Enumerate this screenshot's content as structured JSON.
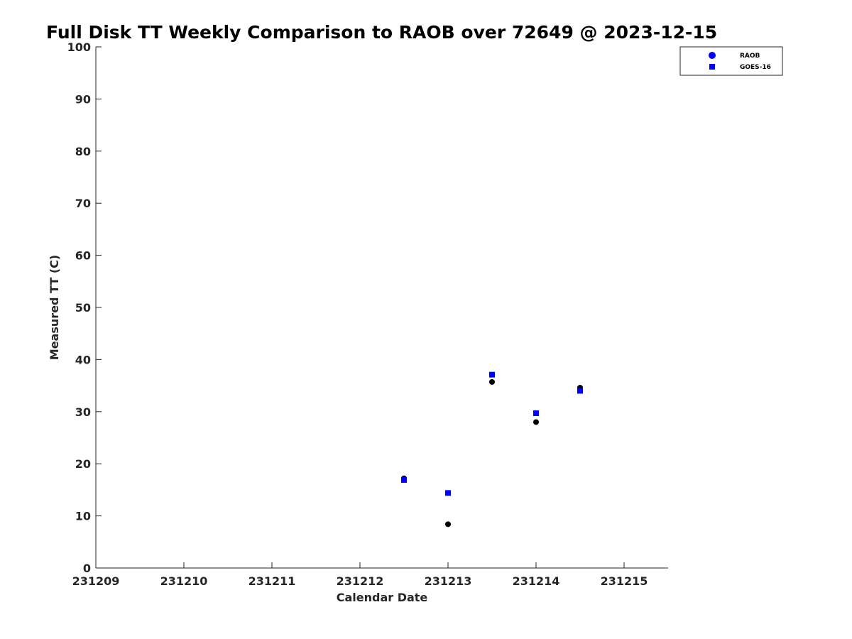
{
  "chart_data": {
    "type": "scatter",
    "title": "Full Disk TT Weekly Comparison to RAOB over 72649 @ 2023-12-15",
    "xlabel": "Calendar Date",
    "ylabel": "Measured TT (C)",
    "xlim": [
      231209,
      231215.5
    ],
    "ylim": [
      0,
      100
    ],
    "xticks": [
      "231209",
      "231210",
      "231211",
      "231212",
      "231213",
      "231214",
      "231215"
    ],
    "yticks": [
      "0",
      "10",
      "20",
      "30",
      "40",
      "50",
      "60",
      "70",
      "80",
      "90",
      "100"
    ],
    "grid": false,
    "legend_position": "top-right (outside plot)",
    "series": [
      {
        "name": "RAOB",
        "marker": "circle",
        "color": "#000000",
        "legend_color": "#0000ff",
        "x": [
          231212.5,
          231213,
          231213.5,
          231214,
          231214.5
        ],
        "y": [
          17.2,
          8.4,
          35.7,
          28.0,
          34.6
        ]
      },
      {
        "name": "GOES-16",
        "marker": "square",
        "color": "#0000ff",
        "x": [
          231212.5,
          231213,
          231213.5,
          231214,
          231214.5
        ],
        "y": [
          16.9,
          14.4,
          37.1,
          29.7,
          34.0
        ]
      }
    ]
  }
}
